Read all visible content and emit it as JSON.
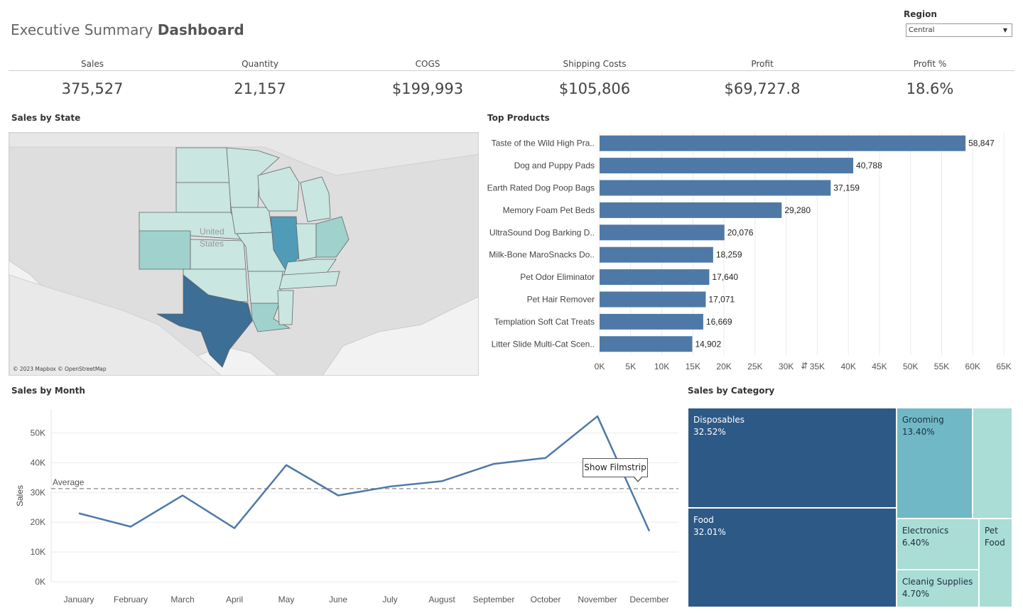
{
  "header": {
    "title_light": "Executive Summary",
    "title_bold": "Dashboard"
  },
  "filter": {
    "label": "Region",
    "selected": "Central"
  },
  "kpis": [
    {
      "label": "Sales",
      "value": "375,527"
    },
    {
      "label": "Quantity",
      "value": "21,157"
    },
    {
      "label": "COGS",
      "value": "$199,993"
    },
    {
      "label": "Shipping Costs",
      "value": "$105,806"
    },
    {
      "label": "Profit",
      "value": "$69,727.8"
    },
    {
      "label": "Profit %",
      "value": "18.6%"
    }
  ],
  "map": {
    "title": "Sales by State",
    "credit": "© 2023 Mapbox © OpenStreetMap",
    "country_label_1": "United",
    "country_label_2": "States",
    "colors": {
      "land": "#dedede",
      "water": "#f2f2f2",
      "light": "#c9e6e0",
      "mid": "#9fd2cc",
      "dark": "#4f9bb8",
      "darkest": "#3c6e96"
    }
  },
  "tooltip": {
    "text": "Show Filmstrip"
  },
  "colors": {
    "bar": "#4e79a7",
    "line": "#4e79a7",
    "grid": "#ebebeb",
    "tree_dark": "#2d5986",
    "tree_mid": "#71b8c6",
    "tree_light": "#a9ddd6"
  },
  "chart_data": [
    {
      "id": "top-products",
      "type": "bar",
      "orientation": "horizontal",
      "title": "Top Products",
      "categories": [
        "Taste of the Wild High Pra..",
        "Dog and Puppy Pads",
        "Earth Rated Dog Poop Bags",
        "Memory Foam Pet Beds",
        "UltraSound Dog Barking D..",
        "Milk-Bone MaroSnacks Do..",
        "Pet Odor Eliminator",
        "Pet Hair Remover",
        "Templation Soft Cat Treats",
        "Litter Slide Multi-Cat Scen.."
      ],
      "values": [
        58847,
        40788,
        37159,
        29280,
        20076,
        18259,
        17640,
        17071,
        16669,
        14902
      ],
      "value_labels": [
        "58,847",
        "40,788",
        "37,159",
        "29,280",
        "20,076",
        "18,259",
        "17,640",
        "17,071",
        "16,669",
        "14,902"
      ],
      "xlim": [
        0,
        65000
      ],
      "x_ticks": [
        "0K",
        "5K",
        "10K",
        "15K",
        "20K",
        "25K",
        "30K",
        "35K",
        "40K",
        "45K",
        "50K",
        "55K",
        "60K",
        "65K"
      ],
      "grid": true
    },
    {
      "id": "sales-by-month",
      "type": "line",
      "title": "Sales by Month",
      "ylabel": "Sales",
      "categories": [
        "January",
        "February",
        "March",
        "April",
        "May",
        "June",
        "July",
        "August",
        "September",
        "October",
        "November",
        "December"
      ],
      "values": [
        23000,
        18500,
        29000,
        18000,
        39200,
        29000,
        32000,
        33800,
        39600,
        41600,
        55600,
        17000
      ],
      "ylim": [
        0,
        58000
      ],
      "y_ticks": [
        0,
        10000,
        20000,
        30000,
        40000,
        50000
      ],
      "y_tick_labels": [
        "0K",
        "10K",
        "20K",
        "30K",
        "40K",
        "50K"
      ],
      "reference_line": {
        "label": "Average",
        "value": 31300
      },
      "grid": true
    },
    {
      "id": "sales-by-category",
      "type": "treemap",
      "title": "Sales by Category",
      "items": [
        {
          "name": "Disposables",
          "value": 32.52,
          "label": "32.52%"
        },
        {
          "name": "Food",
          "value": 32.01,
          "label": "32.01%"
        },
        {
          "name": "Grooming",
          "value": 13.4,
          "label": "13.40%"
        },
        {
          "name": "Electronics",
          "value": 6.4,
          "label": "6.40%"
        },
        {
          "name": "Cleanig Supplies",
          "value": 4.7,
          "label": "4.70%"
        },
        {
          "name": "Pet Food",
          "value": null,
          "label": ""
        },
        {
          "name": "",
          "value": null,
          "label": ""
        }
      ]
    }
  ]
}
